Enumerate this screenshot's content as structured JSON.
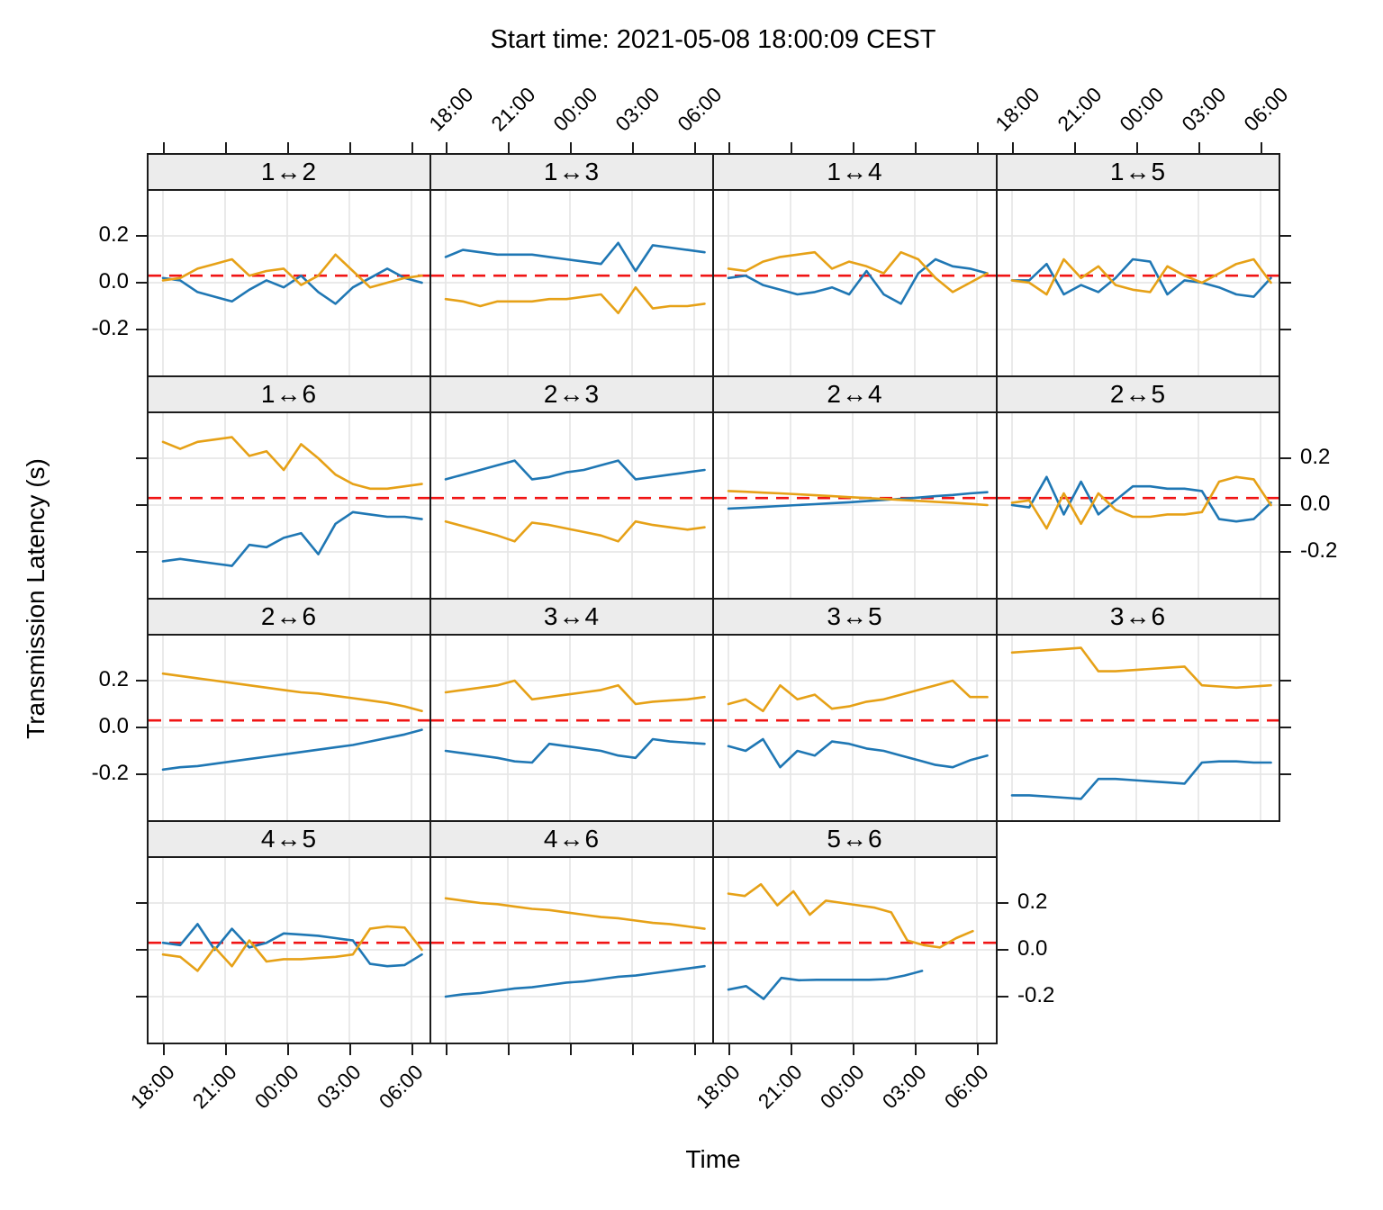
{
  "chart_data": {
    "type": "line",
    "title": "Start time: 2021-05-08 18:00:09 CEST",
    "xlabel": "Time",
    "ylabel": "Transmission Latency (s)",
    "x_tick_hours": [
      18,
      21,
      24,
      27,
      30
    ],
    "x_tick_labels": [
      "18:00",
      "21:00",
      "00:00",
      "03:00",
      "06:00"
    ],
    "y_tick_values": [
      0.2,
      0.0,
      -0.2
    ],
    "y_tick_labels": [
      "0.2",
      "0.0",
      "-0.2"
    ],
    "xlim": [
      17.2,
      30.9
    ],
    "ylim": [
      -0.4,
      0.4
    ],
    "grid": true,
    "legend": "none",
    "layout": {
      "rows": 4,
      "cols": 4,
      "panel_count": 15
    },
    "colors": {
      "blue_series": "#1f77b4",
      "orange_series": "#e6a117",
      "refline": "#f01414",
      "gridline": "#e4e4e4",
      "strip_bg": "#ececec",
      "border": "#1c1c1c"
    },
    "refline": {
      "y": 0.03,
      "style": "dashed"
    },
    "x_hours": [
      18,
      18.83,
      19.67,
      20.5,
      21.33,
      22.17,
      23,
      23.83,
      24.67,
      25.5,
      26.33,
      27.17,
      28,
      28.83,
      29.67,
      30.5
    ],
    "panels": [
      {
        "label": "1↔2",
        "blue": [
          0.02,
          0.01,
          -0.04,
          -0.06,
          -0.08,
          -0.03,
          0.01,
          -0.02,
          0.03,
          -0.04,
          -0.09,
          -0.02,
          0.02,
          0.06,
          0.02,
          0.0
        ],
        "orange": [
          0.01,
          0.02,
          0.06,
          0.08,
          0.1,
          0.03,
          0.05,
          0.06,
          -0.01,
          0.03,
          0.12,
          0.05,
          -0.02,
          0.0,
          0.02,
          0.03
        ]
      },
      {
        "label": "1↔3",
        "blue": [
          0.11,
          0.14,
          0.13,
          0.12,
          0.12,
          0.12,
          0.11,
          0.1,
          0.09,
          0.08,
          0.17,
          0.05,
          0.16,
          0.15,
          0.14,
          0.13
        ],
        "orange": [
          -0.07,
          -0.08,
          -0.1,
          -0.08,
          -0.08,
          -0.08,
          -0.07,
          -0.07,
          -0.06,
          -0.05,
          -0.13,
          -0.02,
          -0.11,
          -0.1,
          -0.1,
          -0.09
        ]
      },
      {
        "label": "1↔4",
        "blue": [
          0.02,
          0.03,
          -0.01,
          -0.03,
          -0.05,
          -0.04,
          -0.02,
          -0.05,
          0.05,
          -0.05,
          -0.09,
          0.04,
          0.1,
          0.07,
          0.06,
          0.04
        ],
        "orange": [
          0.06,
          0.05,
          0.09,
          0.11,
          0.12,
          0.13,
          0.06,
          0.09,
          0.07,
          0.04,
          0.13,
          0.1,
          0.02,
          -0.04,
          0.0,
          0.04
        ]
      },
      {
        "label": "1↔5",
        "blue": [
          0.01,
          0.01,
          0.08,
          -0.05,
          -0.01,
          -0.04,
          0.02,
          0.1,
          0.09,
          -0.05,
          0.01,
          0.0,
          -0.02,
          -0.05,
          -0.06,
          0.02
        ],
        "orange": [
          0.01,
          0.0,
          -0.05,
          0.1,
          0.02,
          0.07,
          -0.01,
          -0.03,
          -0.04,
          0.07,
          0.03,
          0.0,
          0.04,
          0.08,
          0.1,
          0.0
        ]
      },
      {
        "label": "1↔6",
        "blue": [
          -0.24,
          -0.23,
          -0.24,
          -0.25,
          -0.26,
          -0.17,
          -0.18,
          -0.14,
          -0.12,
          -0.21,
          -0.08,
          -0.03,
          -0.04,
          -0.05,
          -0.05,
          -0.06
        ],
        "orange": [
          0.27,
          0.24,
          0.27,
          0.28,
          0.29,
          0.21,
          0.23,
          0.15,
          0.26,
          0.2,
          0.13,
          0.09,
          0.07,
          0.07,
          0.08,
          0.09
        ]
      },
      {
        "label": "2↔3",
        "blue": [
          0.11,
          0.13,
          0.15,
          0.17,
          0.19,
          0.11,
          0.12,
          0.14,
          0.15,
          0.17,
          0.19,
          0.11,
          0.12,
          0.13,
          0.14,
          0.15
        ],
        "orange": [
          -0.07,
          -0.09,
          -0.11,
          -0.13,
          -0.155,
          -0.075,
          -0.085,
          -0.1,
          -0.115,
          -0.13,
          -0.155,
          -0.07,
          -0.085,
          -0.095,
          -0.105,
          -0.095
        ]
      },
      {
        "label": "2↔4",
        "blue": [
          -0.015,
          -0.012,
          -0.008,
          -0.004,
          0.0,
          0.004,
          0.008,
          0.012,
          0.017,
          0.022,
          0.027,
          0.032,
          0.038,
          0.043,
          0.05,
          0.055
        ],
        "orange": [
          0.06,
          0.057,
          0.053,
          0.05,
          0.046,
          0.042,
          0.038,
          0.034,
          0.03,
          0.026,
          0.022,
          0.018,
          0.014,
          0.01,
          0.005,
          0.0
        ]
      },
      {
        "label": "2↔5",
        "blue": [
          0.0,
          -0.01,
          0.12,
          -0.04,
          0.1,
          -0.04,
          0.02,
          0.08,
          0.08,
          0.07,
          0.07,
          0.06,
          -0.06,
          -0.07,
          -0.06,
          0.01
        ],
        "orange": [
          0.01,
          0.02,
          -0.1,
          0.05,
          -0.08,
          0.05,
          -0.02,
          -0.05,
          -0.05,
          -0.04,
          -0.04,
          -0.03,
          0.1,
          0.12,
          0.11,
          0.0
        ]
      },
      {
        "label": "2↔6",
        "blue": [
          -0.18,
          -0.17,
          -0.165,
          -0.155,
          -0.145,
          -0.135,
          -0.125,
          -0.115,
          -0.105,
          -0.095,
          -0.085,
          -0.075,
          -0.06,
          -0.045,
          -0.03,
          -0.01
        ],
        "orange": [
          0.23,
          0.22,
          0.21,
          0.2,
          0.19,
          0.18,
          0.17,
          0.16,
          0.15,
          0.145,
          0.135,
          0.125,
          0.115,
          0.105,
          0.09,
          0.07
        ]
      },
      {
        "label": "3↔4",
        "blue": [
          -0.1,
          -0.11,
          -0.12,
          -0.13,
          -0.145,
          -0.15,
          -0.07,
          -0.08,
          -0.09,
          -0.1,
          -0.12,
          -0.13,
          -0.05,
          -0.06,
          -0.065,
          -0.07
        ],
        "orange": [
          0.15,
          0.16,
          0.17,
          0.18,
          0.2,
          0.12,
          0.13,
          0.14,
          0.15,
          0.16,
          0.18,
          0.1,
          0.11,
          0.115,
          0.12,
          0.13
        ]
      },
      {
        "label": "3↔5",
        "blue": [
          -0.08,
          -0.1,
          -0.05,
          -0.17,
          -0.1,
          -0.12,
          -0.06,
          -0.07,
          -0.09,
          -0.1,
          -0.12,
          -0.14,
          -0.16,
          -0.17,
          -0.14,
          -0.12
        ],
        "orange": [
          0.1,
          0.12,
          0.07,
          0.18,
          0.12,
          0.14,
          0.08,
          0.09,
          0.11,
          0.12,
          0.14,
          0.16,
          0.18,
          0.2,
          0.13,
          0.13
        ]
      },
      {
        "label": "3↔6",
        "blue": [
          -0.29,
          -0.29,
          -0.295,
          -0.3,
          -0.305,
          -0.22,
          -0.22,
          -0.225,
          -0.23,
          -0.235,
          -0.24,
          -0.15,
          -0.145,
          -0.145,
          -0.15,
          -0.15
        ],
        "orange": [
          0.32,
          0.325,
          0.33,
          0.335,
          0.34,
          0.24,
          0.24,
          0.245,
          0.25,
          0.255,
          0.26,
          0.18,
          0.175,
          0.17,
          0.175,
          0.18
        ]
      },
      {
        "label": "4↔5",
        "blue": [
          0.03,
          0.02,
          0.11,
          0.0,
          0.09,
          0.01,
          0.03,
          0.07,
          0.065,
          0.06,
          0.05,
          0.04,
          -0.06,
          -0.07,
          -0.065,
          -0.02
        ],
        "orange": [
          -0.02,
          -0.03,
          -0.09,
          0.01,
          -0.07,
          0.04,
          -0.05,
          -0.04,
          -0.04,
          -0.035,
          -0.03,
          -0.02,
          0.09,
          0.1,
          0.095,
          0.0
        ]
      },
      {
        "label": "4↔6",
        "blue": [
          -0.2,
          -0.19,
          -0.185,
          -0.175,
          -0.165,
          -0.16,
          -0.15,
          -0.14,
          -0.135,
          -0.125,
          -0.115,
          -0.11,
          -0.1,
          -0.09,
          -0.08,
          -0.07
        ],
        "orange": [
          0.22,
          0.21,
          0.2,
          0.195,
          0.185,
          0.175,
          0.17,
          0.16,
          0.15,
          0.14,
          0.135,
          0.125,
          0.115,
          0.11,
          0.1,
          0.09
        ]
      },
      {
        "label": "5↔6",
        "blue_x": [
          18,
          18.85,
          19.7,
          20.55,
          21.4,
          22.25,
          23.1,
          23.95,
          24.8,
          25.65,
          26.5,
          27.35
        ],
        "blue": [
          -0.17,
          -0.155,
          -0.21,
          -0.12,
          -0.13,
          -0.128,
          -0.128,
          -0.128,
          -0.128,
          -0.125,
          -0.11,
          -0.09
        ],
        "orange_x": [
          18,
          18.79,
          19.57,
          20.36,
          21.14,
          21.93,
          22.71,
          23.5,
          24.29,
          25.07,
          25.86,
          26.64,
          27.43,
          28.21,
          29.0,
          29.8
        ],
        "orange": [
          0.24,
          0.23,
          0.28,
          0.19,
          0.25,
          0.15,
          0.21,
          0.2,
          0.19,
          0.18,
          0.16,
          0.04,
          0.02,
          0.01,
          0.05,
          0.08
        ]
      }
    ]
  }
}
